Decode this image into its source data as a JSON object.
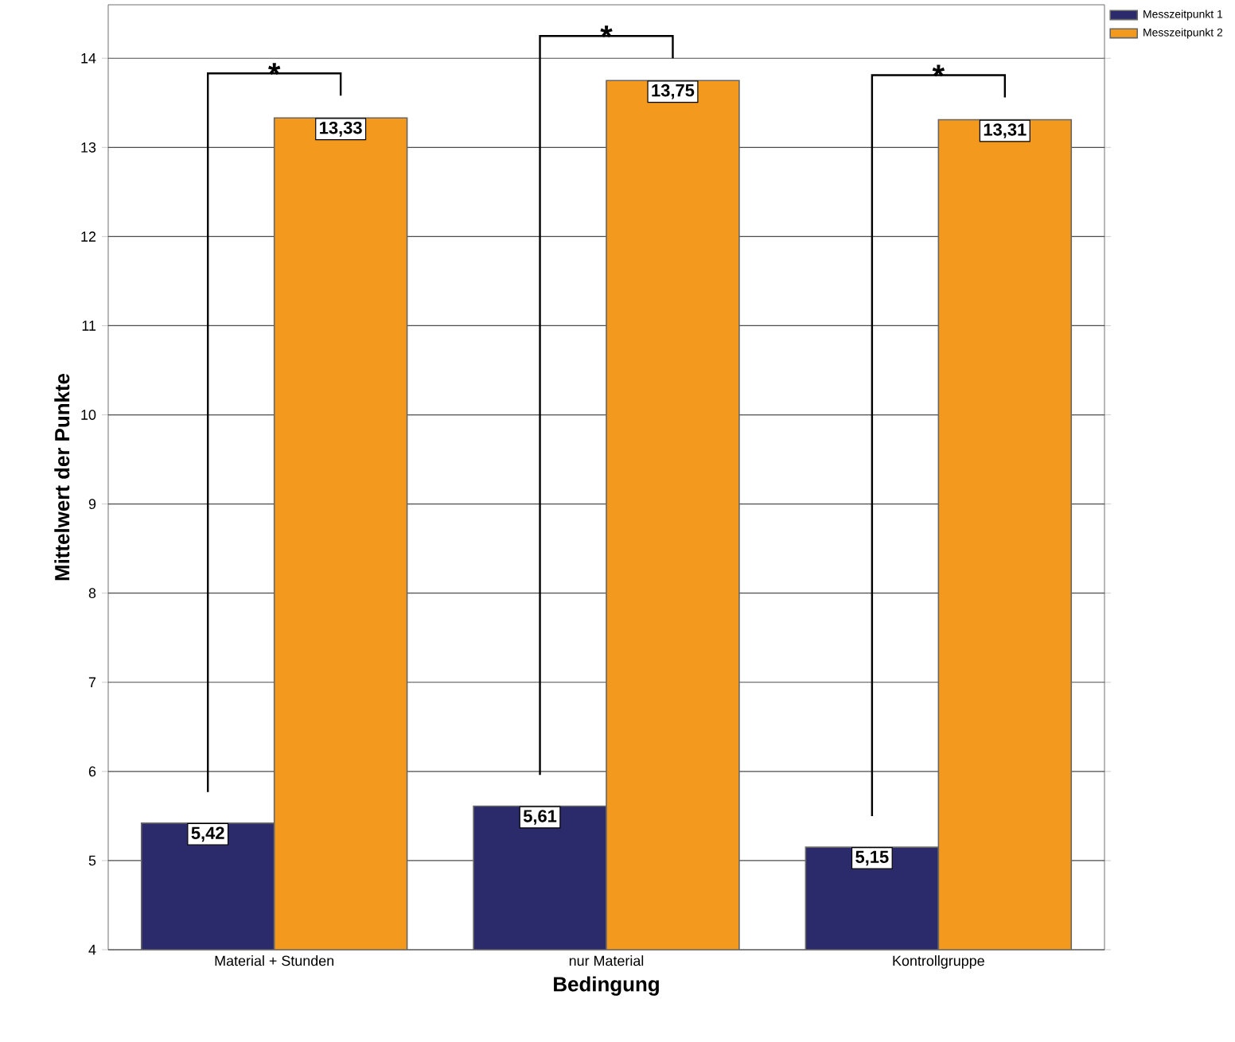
{
  "chart_data": {
    "type": "bar",
    "xlabel": "Bedingung",
    "ylabel": "Mittelwert der Punkte",
    "categories": [
      "Material + Stunden",
      "nur Material",
      "Kontrollgruppe"
    ],
    "series": [
      {
        "name": "Messzeitpunkt 1",
        "color": "#2b2a6b",
        "values": [
          5.42,
          5.61,
          5.15
        ],
        "value_labels": [
          "5,42",
          "5,61",
          "5,15"
        ]
      },
      {
        "name": "Messzeitpunkt 2",
        "color": "#f39a1e",
        "values": [
          13.33,
          13.75,
          13.31
        ],
        "value_labels": [
          "13,33",
          "13,75",
          "13,31"
        ]
      }
    ],
    "ylim": [
      4,
      14.6
    ],
    "yticks": [
      4,
      5,
      6,
      7,
      8,
      9,
      10,
      11,
      12,
      13,
      14
    ],
    "grid": "y",
    "legend": "top right",
    "annotations": [
      "*",
      "*",
      "*"
    ]
  }
}
